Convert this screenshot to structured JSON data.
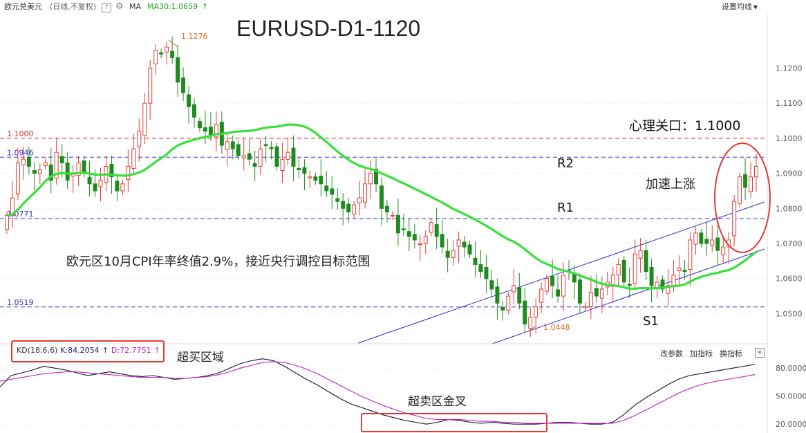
{
  "header": {
    "instrument": "欧元兑美元",
    "mode": "(日线,不复权)",
    "help": "?",
    "ma_label": "MA",
    "ma30_label": "MA30:1.0659",
    "ma30_arrow": "↑",
    "settings_label": "设置均线"
  },
  "kd_panel": {
    "label": "KD(18,6,6)",
    "k_label": "K:84.2054",
    "k_arrow": "↑",
    "d_label": "D:72.7751",
    "d_arrow": "↑",
    "tools": [
      "改参数",
      "加指标",
      "换指标"
    ],
    "close": "×"
  },
  "colors": {
    "up": "#e53935",
    "down": "#1f8a1f",
    "ma30": "#37e03a",
    "channel": "#2a2ad6",
    "k_line": "#111133",
    "d_line": "#c21cbf",
    "highlight": "#e53935"
  },
  "chart_data": [
    {
      "type": "candlestick",
      "title": "EURUSD-D1-1120",
      "y_ticks": [
        1.05,
        1.06,
        1.07,
        1.08,
        1.09,
        1.1,
        1.11,
        1.12
      ],
      "y_tick_labels": [
        "1.0500",
        "1.0600",
        "1.0700",
        "1.0800",
        "1.0900",
        "1.1000",
        "1.1100",
        "1.1200"
      ],
      "ylim": [
        1.042,
        1.1335
      ],
      "grid": true,
      "levels": [
        {
          "value": 1.1,
          "label": "1.1000",
          "color": "#d32f2f"
        },
        {
          "value": 1.0946,
          "label": "1.0946",
          "color": "#3030c0"
        },
        {
          "value": 1.0771,
          "label": "1.0771",
          "color": "#3030c0"
        },
        {
          "value": 1.0519,
          "label": "1.0519",
          "color": "#3030c0"
        }
      ],
      "annotations": {
        "high_label": "1.1276",
        "low_label": "1.0448",
        "psych_label": "心理关口：1.1000",
        "r2": "R2",
        "r1": "R1",
        "s1": "S1",
        "accel": "加速上涨",
        "cpi_note": "欧元区10月CPI年率终值2.9%，接近央行调控目标范围"
      },
      "closes": [
        1.078,
        1.083,
        1.093,
        1.094,
        1.092,
        1.09,
        1.091,
        1.093,
        1.088,
        1.096,
        1.093,
        1.088,
        1.09,
        1.093,
        1.09,
        1.087,
        1.085,
        1.088,
        1.092,
        1.089,
        1.085,
        1.087,
        1.092,
        1.097,
        1.102,
        1.11,
        1.12,
        1.125,
        1.124,
        1.126,
        1.123,
        1.116,
        1.113,
        1.109,
        1.106,
        1.103,
        1.102,
        1.101,
        1.104,
        1.098,
        1.099,
        1.097,
        1.095,
        1.095,
        1.094,
        1.092,
        1.097,
        1.098,
        1.097,
        1.092,
        1.094,
        1.096,
        1.092,
        1.091,
        1.09,
        1.089,
        1.088,
        1.087,
        1.085,
        1.084,
        1.082,
        1.08,
        1.079,
        1.081,
        1.083,
        1.087,
        1.09,
        1.087,
        1.08,
        1.079,
        1.078,
        1.073,
        1.074,
        1.072,
        1.071,
        1.07,
        1.072,
        1.076,
        1.072,
        1.069,
        1.066,
        1.068,
        1.071,
        1.069,
        1.067,
        1.064,
        1.062,
        1.06,
        1.057,
        1.053,
        1.051,
        1.055,
        1.058,
        1.053,
        1.047,
        1.049,
        1.052,
        1.057,
        1.06,
        1.058,
        1.055,
        1.061,
        1.062,
        1.059,
        1.053,
        1.052,
        1.056,
        1.055,
        1.057,
        1.059,
        1.061,
        1.064,
        1.059,
        1.058,
        1.067,
        1.068,
        1.062,
        1.058,
        1.059,
        1.057,
        1.058,
        1.061,
        1.063,
        1.062,
        1.071,
        1.073,
        1.07,
        1.07,
        1.071,
        1.068,
        1.069,
        1.071,
        1.082,
        1.089,
        1.086,
        1.089,
        1.092
      ],
      "high_value": 1.1276,
      "low_value": 1.0448
    },
    {
      "type": "line",
      "title": "KD(18,6,6)",
      "y_ticks": [
        20,
        50,
        80
      ],
      "y_tick_labels": [
        "20.0000",
        "50.0000",
        "80.0000"
      ],
      "ylim": [
        12,
        92
      ],
      "series": [
        {
          "name": "K",
          "values": [
            60,
            72,
            75,
            78,
            82,
            80,
            78,
            75,
            72,
            74,
            76,
            74,
            72,
            71,
            72,
            70,
            68,
            69,
            70,
            72,
            75,
            80,
            85,
            88,
            90,
            88,
            82,
            75,
            68,
            62,
            55,
            48,
            42,
            38,
            34,
            30,
            27,
            24,
            22,
            20,
            22,
            25,
            24,
            22,
            21,
            22,
            21,
            20,
            20,
            20,
            21,
            22,
            22,
            21,
            20,
            20,
            22,
            30,
            40,
            48,
            55,
            62,
            68,
            72,
            74,
            76,
            78,
            80,
            82,
            84
          ]
        },
        {
          "name": "D",
          "values": [
            66,
            68,
            70,
            72,
            74,
            75,
            76,
            76,
            75,
            74,
            73,
            72,
            71,
            70,
            70,
            70,
            69,
            69,
            70,
            71,
            73,
            76,
            80,
            83,
            86,
            87,
            86,
            83,
            79,
            74,
            68,
            62,
            56,
            50,
            45,
            40,
            36,
            32,
            29,
            26,
            25,
            25,
            25,
            24,
            23,
            23,
            22,
            22,
            21,
            21,
            21,
            21,
            21,
            21,
            21,
            21,
            21,
            24,
            29,
            35,
            41,
            47,
            53,
            58,
            62,
            65,
            67,
            69,
            71,
            73
          ]
        }
      ],
      "annotations": {
        "overbought": "超买区域",
        "oversold_cross": "超卖区金叉"
      }
    }
  ]
}
